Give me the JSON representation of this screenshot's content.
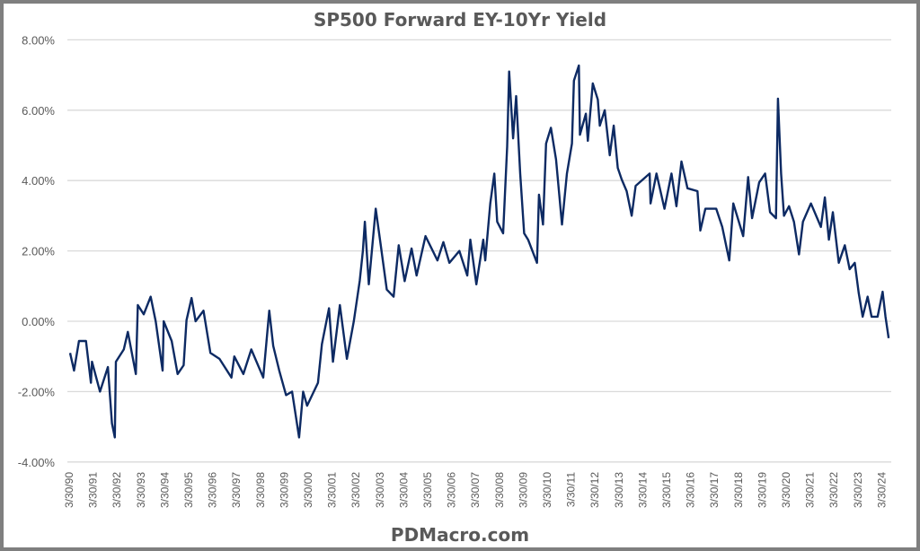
{
  "chart_data": {
    "type": "line",
    "title": "SP500 Forward EY-10Yr Yield",
    "watermark": "PDMacro.com",
    "xlabel": "",
    "ylabel": "",
    "ylim": [
      -4,
      8
    ],
    "y_ticks": [
      "8.00%",
      "6.00%",
      "4.00%",
      "2.00%",
      "0.00%",
      "-2.00%",
      "-4.00%"
    ],
    "y_tick_values": [
      8,
      6,
      4,
      2,
      0,
      -2,
      -4
    ],
    "x_ticks": [
      "3/30/90",
      "3/30/91",
      "3/30/92",
      "3/30/93",
      "3/30/94",
      "3/30/95",
      "3/30/96",
      "3/30/97",
      "3/30/98",
      "3/30/99",
      "3/30/00",
      "3/30/01",
      "3/30/02",
      "3/30/03",
      "3/30/04",
      "3/30/05",
      "3/30/06",
      "3/30/07",
      "3/30/08",
      "3/30/09",
      "3/30/10",
      "3/30/11",
      "3/30/12",
      "3/30/13",
      "3/30/14",
      "3/30/15",
      "3/30/16",
      "3/30/17",
      "3/30/18",
      "3/30/19",
      "3/30/20",
      "3/30/21",
      "3/30/22",
      "3/30/23",
      "3/30/24"
    ],
    "grid": true,
    "legend": "none",
    "colors": {
      "line": "#0d2a63",
      "grid": "#d9d9d9",
      "text": "#595959",
      "border": "#7f7f7f"
    },
    "series": [
      {
        "points": [
          [
            "1990-01-01",
            -0.9
          ],
          [
            "1990-03-01",
            -1.4
          ],
          [
            "1990-05-15",
            -0.56
          ],
          [
            "1990-09-01",
            -0.56
          ],
          [
            "1990-11-15",
            -1.75
          ],
          [
            "1990-12-01",
            -1.15
          ],
          [
            "1991-04-01",
            -2.0
          ],
          [
            "1991-08-01",
            -1.3
          ],
          [
            "1991-10-01",
            -2.9
          ],
          [
            "1991-11-15",
            -3.3
          ],
          [
            "1991-12-01",
            -1.15
          ],
          [
            "1992-04-01",
            -0.8
          ],
          [
            "1992-06-01",
            -0.3
          ],
          [
            "1992-10-01",
            -1.5
          ],
          [
            "1992-11-01",
            0.46
          ],
          [
            "1993-02-01",
            0.2
          ],
          [
            "1993-05-15",
            0.7
          ],
          [
            "1993-08-01",
            0.0
          ],
          [
            "1993-11-15",
            -1.4
          ],
          [
            "1993-12-01",
            0.0
          ],
          [
            "1994-04-01",
            -0.56
          ],
          [
            "1994-07-01",
            -1.5
          ],
          [
            "1994-10-01",
            -1.25
          ],
          [
            "1994-11-15",
            0.03
          ],
          [
            "1995-02-01",
            0.66
          ],
          [
            "1995-04-01",
            0.0
          ],
          [
            "1995-08-01",
            0.3
          ],
          [
            "1995-11-15",
            -0.9
          ],
          [
            "1996-04-01",
            -1.07
          ],
          [
            "1996-10-01",
            -1.6
          ],
          [
            "1996-11-15",
            -1.0
          ],
          [
            "1997-04-01",
            -1.5
          ],
          [
            "1997-08-01",
            -0.8
          ],
          [
            "1998-02-01",
            -1.6
          ],
          [
            "1998-05-01",
            0.3
          ],
          [
            "1998-07-01",
            -0.7
          ],
          [
            "1998-10-01",
            -1.4
          ],
          [
            "1999-01-15",
            -2.1
          ],
          [
            "1999-04-15",
            -2.0
          ],
          [
            "1999-08-01",
            -3.3
          ],
          [
            "1999-10-01",
            -2.0
          ],
          [
            "1999-12-01",
            -2.4
          ],
          [
            "2000-05-15",
            -1.75
          ],
          [
            "2000-07-15",
            -0.65
          ],
          [
            "2000-11-01",
            0.37
          ],
          [
            "2001-01-01",
            -1.15
          ],
          [
            "2001-04-15",
            0.46
          ],
          [
            "2001-08-01",
            -1.07
          ],
          [
            "2001-11-15",
            0.0
          ],
          [
            "2002-02-15",
            1.15
          ],
          [
            "2002-04-01",
            2.0
          ],
          [
            "2002-05-01",
            2.83
          ],
          [
            "2002-07-01",
            1.05
          ],
          [
            "2002-10-15",
            3.2
          ],
          [
            "2003-01-01",
            2.16
          ],
          [
            "2003-04-01",
            0.9
          ],
          [
            "2003-07-15",
            0.7
          ],
          [
            "2003-10-01",
            2.16
          ],
          [
            "2004-01-01",
            1.14
          ],
          [
            "2004-04-15",
            2.07
          ],
          [
            "2004-07-01",
            1.3
          ],
          [
            "2004-11-15",
            2.42
          ],
          [
            "2005-05-15",
            1.73
          ],
          [
            "2005-08-15",
            2.25
          ],
          [
            "2005-11-15",
            1.66
          ],
          [
            "2006-04-15",
            2.0
          ],
          [
            "2006-08-15",
            1.3
          ],
          [
            "2006-10-01",
            2.32
          ],
          [
            "2007-01-01",
            1.05
          ],
          [
            "2007-04-15",
            2.32
          ],
          [
            "2007-05-15",
            1.73
          ],
          [
            "2007-08-01",
            3.35
          ],
          [
            "2007-10-01",
            4.2
          ],
          [
            "2007-11-15",
            2.83
          ],
          [
            "2008-02-15",
            2.5
          ],
          [
            "2008-04-15",
            4.97
          ],
          [
            "2008-05-15",
            7.1
          ],
          [
            "2008-07-15",
            5.2
          ],
          [
            "2008-09-01",
            6.4
          ],
          [
            "2008-11-01",
            4.2
          ],
          [
            "2009-01-01",
            2.5
          ],
          [
            "2009-03-01",
            2.32
          ],
          [
            "2009-07-15",
            1.66
          ],
          [
            "2009-08-15",
            3.6
          ],
          [
            "2009-10-15",
            2.75
          ],
          [
            "2009-12-01",
            5.05
          ],
          [
            "2010-02-15",
            5.5
          ],
          [
            "2010-05-01",
            4.6
          ],
          [
            "2010-08-01",
            2.75
          ],
          [
            "2010-10-15",
            4.2
          ],
          [
            "2011-01-01",
            5.05
          ],
          [
            "2011-02-01",
            6.84
          ],
          [
            "2011-04-15",
            7.27
          ],
          [
            "2011-05-01",
            5.3
          ],
          [
            "2011-08-01",
            5.9
          ],
          [
            "2011-09-01",
            5.13
          ],
          [
            "2011-11-15",
            6.76
          ],
          [
            "2012-02-01",
            6.3
          ],
          [
            "2012-03-01",
            5.56
          ],
          [
            "2012-05-15",
            6.0
          ],
          [
            "2012-08-01",
            4.72
          ],
          [
            "2012-10-01",
            5.56
          ],
          [
            "2012-12-01",
            4.36
          ],
          [
            "2013-02-01",
            4.03
          ],
          [
            "2013-04-15",
            3.7
          ],
          [
            "2013-07-01",
            3.0
          ],
          [
            "2013-09-01",
            3.85
          ],
          [
            "2014-04-01",
            4.2
          ],
          [
            "2014-04-15",
            3.35
          ],
          [
            "2014-07-15",
            4.2
          ],
          [
            "2014-11-15",
            3.2
          ],
          [
            "2015-03-01",
            4.2
          ],
          [
            "2015-05-15",
            3.27
          ],
          [
            "2015-08-01",
            4.54
          ],
          [
            "2015-11-01",
            3.78
          ],
          [
            "2016-04-01",
            3.7
          ],
          [
            "2016-05-15",
            2.58
          ],
          [
            "2016-08-01",
            3.2
          ],
          [
            "2017-01-15",
            3.2
          ],
          [
            "2017-04-15",
            2.68
          ],
          [
            "2017-08-01",
            1.73
          ],
          [
            "2017-10-01",
            3.35
          ],
          [
            "2018-03-01",
            2.42
          ],
          [
            "2018-05-15",
            4.1
          ],
          [
            "2018-07-15",
            2.93
          ],
          [
            "2018-11-01",
            3.95
          ],
          [
            "2019-02-01",
            4.2
          ],
          [
            "2019-04-15",
            3.1
          ],
          [
            "2019-07-15",
            2.93
          ],
          [
            "2019-08-15",
            6.33
          ],
          [
            "2019-10-01",
            4.2
          ],
          [
            "2019-11-15",
            3.0
          ],
          [
            "2020-02-01",
            3.27
          ],
          [
            "2020-04-15",
            2.83
          ],
          [
            "2020-07-01",
            1.9
          ],
          [
            "2020-09-01",
            2.83
          ],
          [
            "2021-01-01",
            3.35
          ],
          [
            "2021-06-01",
            2.68
          ],
          [
            "2021-08-01",
            3.52
          ],
          [
            "2021-10-01",
            2.32
          ],
          [
            "2021-12-01",
            3.1
          ],
          [
            "2022-03-01",
            1.66
          ],
          [
            "2022-06-01",
            2.16
          ],
          [
            "2022-08-15",
            1.48
          ],
          [
            "2022-11-01",
            1.66
          ],
          [
            "2023-01-01",
            0.8
          ],
          [
            "2023-03-01",
            0.13
          ],
          [
            "2023-05-15",
            0.7
          ],
          [
            "2023-07-15",
            0.13
          ],
          [
            "2023-10-15",
            0.13
          ],
          [
            "2024-01-01",
            0.84
          ],
          [
            "2024-02-15",
            0.13
          ],
          [
            "2024-04-01",
            -0.48
          ]
        ]
      }
    ]
  }
}
